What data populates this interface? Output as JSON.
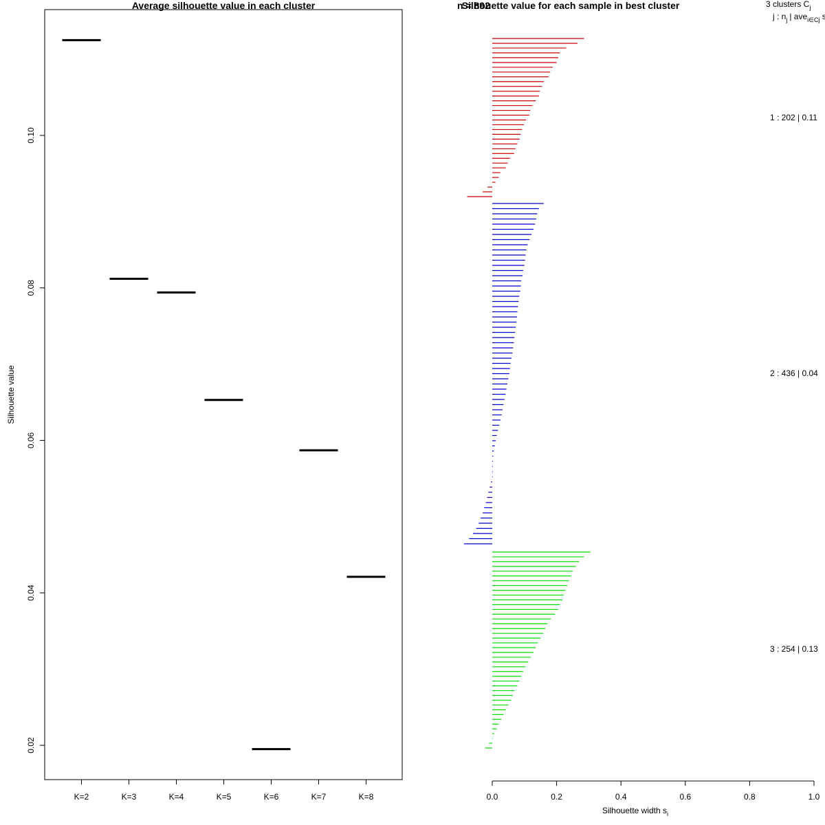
{
  "chart_data": [
    {
      "type": "scatter",
      "marker": "horizontal-segment",
      "title": "Average silhouette value in each cluster",
      "xlabel": "",
      "ylabel": "Silhouette value",
      "categories": [
        "K=2",
        "K=3",
        "K=4",
        "K=5",
        "K=6",
        "K=7",
        "K=8"
      ],
      "values": [
        0.1125,
        0.0812,
        0.0794,
        0.0653,
        0.0195,
        0.0587,
        0.0421
      ],
      "ylim": [
        0.0155,
        0.1165
      ],
      "yticks": [
        0.02,
        0.04,
        0.06,
        0.08,
        0.1
      ],
      "ytick_labels": [
        "0.02",
        "0.04",
        "0.06",
        "0.08",
        "0.10"
      ],
      "grid": false,
      "color": "#000000"
    },
    {
      "type": "bar",
      "orientation": "horizontal",
      "title": "Silhouette value for each sample in best cluster",
      "overlapping_title_text": "n = 892",
      "xlabel": "Silhouette width s",
      "xlabel_subscript": "i",
      "xlim": [
        0,
        1
      ],
      "xticks": [
        0.0,
        0.2,
        0.4,
        0.6,
        0.8,
        1.0
      ],
      "xtick_labels": [
        "0.0",
        "0.2",
        "0.4",
        "0.6",
        "0.8",
        "1.0"
      ],
      "legend_header": {
        "line1_text": "3  clusters  C",
        "line1_subscript": "j",
        "line2_text": "j :  n",
        "line2_subscript": "j",
        "line2_rest": "| ave",
        "line2_sub2": "i∈Cj",
        "line2_tail": "  s"
      },
      "series": [
        {
          "name": "1",
          "label": "1 :  202  |  0.11",
          "color": "#cc0000",
          "widths": [
            0.285,
            0.265,
            0.23,
            0.21,
            0.205,
            0.2,
            0.188,
            0.18,
            0.175,
            0.16,
            0.155,
            0.148,
            0.145,
            0.135,
            0.125,
            0.118,
            0.115,
            0.105,
            0.098,
            0.092,
            0.088,
            0.085,
            0.078,
            0.072,
            0.068,
            0.055,
            0.048,
            0.042,
            0.025,
            0.02,
            0.01,
            -0.015,
            -0.03,
            -0.078
          ]
        },
        {
          "name": "2",
          "label": "2 :  436  |  0.04",
          "color": "#0000cc",
          "widths": [
            0.16,
            0.145,
            0.14,
            0.137,
            0.133,
            0.128,
            0.122,
            0.116,
            0.11,
            0.106,
            0.104,
            0.102,
            0.1,
            0.096,
            0.094,
            0.09,
            0.089,
            0.087,
            0.084,
            0.082,
            0.08,
            0.078,
            0.077,
            0.075,
            0.073,
            0.071,
            0.069,
            0.067,
            0.065,
            0.063,
            0.06,
            0.057,
            0.055,
            0.053,
            0.05,
            0.047,
            0.044,
            0.041,
            0.038,
            0.035,
            0.032,
            0.029,
            0.026,
            0.022,
            0.018,
            0.014,
            0.011,
            0.008,
            0.005,
            0.003,
            0.002,
            0.0,
            0.0,
            0.0,
            -0.004,
            -0.008,
            -0.012,
            -0.016,
            -0.02,
            -0.025,
            -0.03,
            -0.036,
            -0.042,
            -0.05,
            -0.06,
            -0.072,
            -0.088
          ]
        },
        {
          "name": "3",
          "label": "3 :  254  |  0.13",
          "color": "#00dd00",
          "widths": [
            0.305,
            0.285,
            0.27,
            0.26,
            0.25,
            0.245,
            0.238,
            0.233,
            0.227,
            0.222,
            0.218,
            0.21,
            0.205,
            0.195,
            0.182,
            0.172,
            0.165,
            0.158,
            0.15,
            0.142,
            0.135,
            0.128,
            0.12,
            0.112,
            0.104,
            0.096,
            0.09,
            0.084,
            0.078,
            0.07,
            0.064,
            0.058,
            0.05,
            0.042,
            0.035,
            0.028,
            0.02,
            0.014,
            0.006,
            0.001,
            -0.01,
            -0.022
          ]
        }
      ]
    }
  ]
}
